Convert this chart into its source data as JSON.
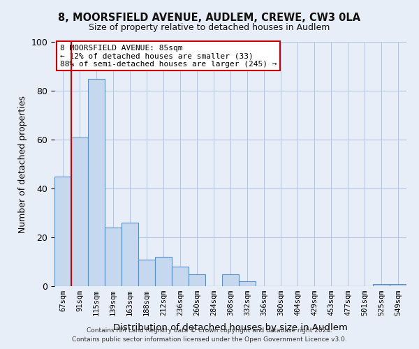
{
  "title": "8, MOORSFIELD AVENUE, AUDLEM, CREWE, CW3 0LA",
  "subtitle": "Size of property relative to detached houses in Audlem",
  "xlabel": "Distribution of detached houses by size in Audlem",
  "ylabel": "Number of detached properties",
  "categories": [
    "67sqm",
    "91sqm",
    "115sqm",
    "139sqm",
    "163sqm",
    "188sqm",
    "212sqm",
    "236sqm",
    "260sqm",
    "284sqm",
    "308sqm",
    "332sqm",
    "356sqm",
    "380sqm",
    "404sqm",
    "429sqm",
    "453sqm",
    "477sqm",
    "501sqm",
    "525sqm",
    "549sqm"
  ],
  "values": [
    45,
    61,
    85,
    24,
    26,
    11,
    12,
    8,
    5,
    0,
    5,
    2,
    0,
    0,
    0,
    0,
    0,
    0,
    0,
    1,
    1
  ],
  "bar_color": "#c5d8ee",
  "bar_edge_color": "#5b8fc9",
  "highlight_line_color": "#cc0000",
  "annotation_title": "8 MOORSFIELD AVENUE: 85sqm",
  "annotation_line1": "← 12% of detached houses are smaller (33)",
  "annotation_line2": "88% of semi-detached houses are larger (245) →",
  "annotation_box_color": "#ffffff",
  "annotation_box_edge": "#cc0000",
  "ylim": [
    0,
    100
  ],
  "yticks": [
    0,
    20,
    40,
    60,
    80,
    100
  ],
  "background_color": "#e8eef8",
  "footer1": "Contains HM Land Registry data © Crown copyright and database right 2024.",
  "footer2": "Contains public sector information licensed under the Open Government Licence v3.0."
}
